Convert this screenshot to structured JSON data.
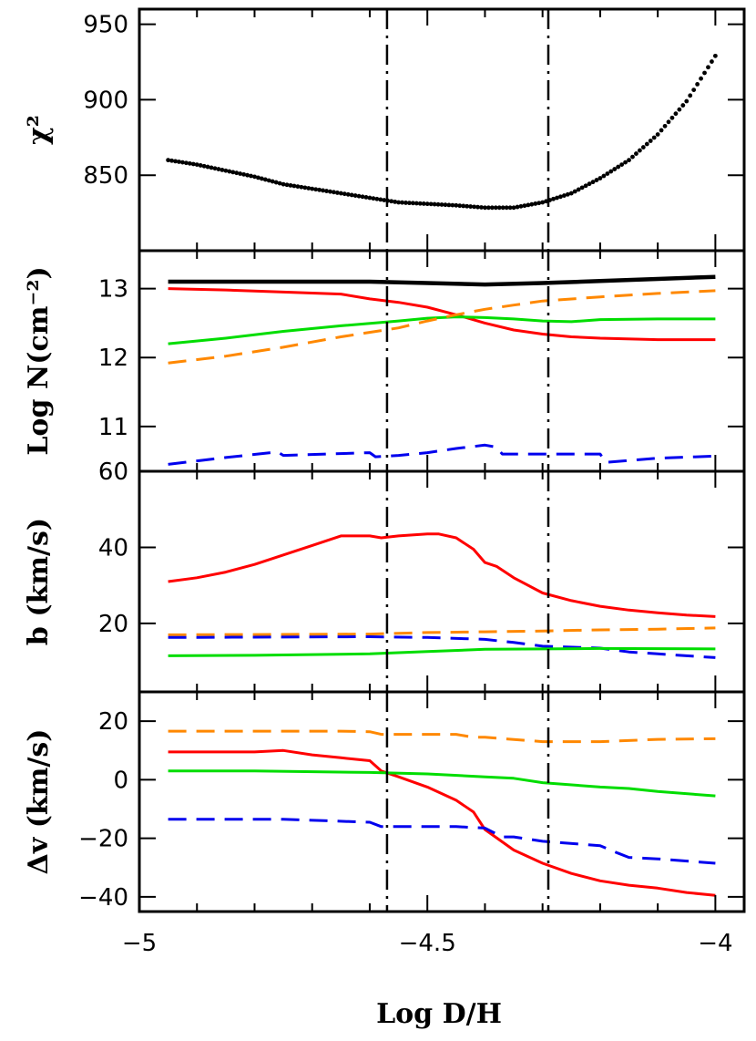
{
  "chart_data": {
    "type": "line",
    "xlabel": "Log D/H",
    "xlim": [
      -5,
      -3.95
    ],
    "xticks": [
      -5,
      -4.5,
      -4
    ],
    "xtick_labels": [
      "−5",
      "−4.5",
      "−4"
    ],
    "vlines": [
      -4.57,
      -4.29
    ],
    "colors": {
      "total": "#000000",
      "red": "#ff0000",
      "green": "#00dd00",
      "orange": "#ff8800",
      "blue": "#0000ee"
    },
    "panels": [
      {
        "id": "chi2",
        "ylabel": "χ²",
        "ylim": [
          800,
          960
        ],
        "yticks": [
          850,
          900,
          950
        ],
        "ytick_labels": [
          "850",
          "900",
          "950"
        ],
        "series": [
          {
            "key": "total",
            "style": "dots",
            "x": [
              -4.95,
              -4.9,
              -4.85,
              -4.8,
              -4.75,
              -4.7,
              -4.65,
              -4.6,
              -4.55,
              -4.5,
              -4.45,
              -4.4,
              -4.35,
              -4.3,
              -4.25,
              -4.2,
              -4.15,
              -4.1,
              -4.05,
              -4.0
            ],
            "y": [
              860,
              857,
              853,
              849,
              844,
              841,
              838,
              835,
              832,
              831,
              830,
              828.5,
              828.5,
              832,
              838,
              848,
              860,
              877,
              899,
              929
            ]
          }
        ]
      },
      {
        "id": "logN",
        "ylabel": "Log N(cm⁻²)",
        "ylim": [
          10.35,
          13.55
        ],
        "yticks": [
          11,
          12,
          13
        ],
        "ytick_labels": [
          "11",
          "12",
          "13"
        ],
        "series": [
          {
            "key": "total",
            "style": "thick",
            "x": [
              -4.95,
              -4.6,
              -4.5,
              -4.4,
              -4.3,
              -4.2,
              -4.1,
              -4.0
            ],
            "y": [
              13.1,
              13.1,
              13.08,
              13.06,
              13.08,
              13.11,
              13.14,
              13.17
            ]
          },
          {
            "key": "red",
            "style": "solid",
            "x": [
              -4.95,
              -4.85,
              -4.75,
              -4.65,
              -4.6,
              -4.55,
              -4.5,
              -4.45,
              -4.4,
              -4.35,
              -4.3,
              -4.25,
              -4.2,
              -4.1,
              -4.0
            ],
            "y": [
              13.0,
              12.98,
              12.95,
              12.92,
              12.85,
              12.8,
              12.73,
              12.62,
              12.5,
              12.4,
              12.34,
              12.3,
              12.28,
              12.26,
              12.26
            ]
          },
          {
            "key": "green",
            "style": "solid",
            "x": [
              -4.95,
              -4.85,
              -4.75,
              -4.65,
              -4.55,
              -4.5,
              -4.45,
              -4.4,
              -4.35,
              -4.3,
              -4.25,
              -4.2,
              -4.1,
              -4.0
            ],
            "y": [
              12.2,
              12.28,
              12.38,
              12.46,
              12.53,
              12.57,
              12.59,
              12.58,
              12.56,
              12.53,
              12.52,
              12.55,
              12.56,
              12.56
            ]
          },
          {
            "key": "orange",
            "style": "dashed",
            "x": [
              -4.95,
              -4.85,
              -4.75,
              -4.65,
              -4.55,
              -4.5,
              -4.45,
              -4.4,
              -4.35,
              -4.3,
              -4.2,
              -4.1,
              -4.0
            ],
            "y": [
              11.92,
              12.02,
              12.15,
              12.3,
              12.43,
              12.53,
              12.62,
              12.7,
              12.76,
              12.82,
              12.88,
              12.93,
              12.97
            ]
          },
          {
            "key": "blue",
            "style": "dashed",
            "x": [
              -4.95,
              -4.85,
              -4.76,
              -4.75,
              -4.6,
              -4.59,
              -4.55,
              -4.5,
              -4.45,
              -4.4,
              -4.38,
              -4.37,
              -4.3,
              -4.2,
              -4.19,
              -4.1,
              -4.0
            ],
            "y": [
              10.45,
              10.55,
              10.63,
              10.58,
              10.62,
              10.56,
              10.58,
              10.62,
              10.68,
              10.73,
              10.7,
              10.6,
              10.6,
              10.6,
              10.48,
              10.54,
              10.57
            ]
          }
        ]
      },
      {
        "id": "b",
        "ylabel": "b (km/s)",
        "ylim": [
          2,
          60
        ],
        "yticks": [
          20,
          40,
          60
        ],
        "ytick_labels": [
          "20",
          "40",
          "60"
        ],
        "series": [
          {
            "key": "red",
            "style": "solid",
            "x": [
              -4.95,
              -4.9,
              -4.85,
              -4.8,
              -4.75,
              -4.7,
              -4.65,
              -4.6,
              -4.58,
              -4.55,
              -4.5,
              -4.48,
              -4.45,
              -4.42,
              -4.4,
              -4.38,
              -4.35,
              -4.3,
              -4.25,
              -4.2,
              -4.15,
              -4.1,
              -4.05,
              -4.0
            ],
            "y": [
              31,
              32,
              33.5,
              35.5,
              38,
              40.5,
              43,
              43,
              42.5,
              43,
              43.5,
              43.5,
              42.5,
              39.5,
              36,
              35,
              32,
              28,
              26,
              24.5,
              23.5,
              22.8,
              22.2,
              21.8
            ]
          },
          {
            "key": "orange",
            "style": "dashed",
            "x": [
              -4.95,
              -4.6,
              -4.5,
              -4.4,
              -4.3,
              -4.2,
              -4.1,
              -4.0
            ],
            "y": [
              17,
              17.2,
              17.6,
              17.8,
              18,
              18.3,
              18.5,
              18.8
            ]
          },
          {
            "key": "blue",
            "style": "dashed",
            "x": [
              -4.95,
              -4.6,
              -4.5,
              -4.4,
              -4.35,
              -4.3,
              -4.2,
              -4.15,
              -4.1,
              -4.0
            ],
            "y": [
              16.3,
              16.5,
              16.3,
              15.8,
              15,
              14,
              13.5,
              12.5,
              12,
              11
            ]
          },
          {
            "key": "green",
            "style": "solid",
            "x": [
              -4.95,
              -4.8,
              -4.6,
              -4.5,
              -4.4,
              -4.3,
              -4.2,
              -4.0
            ],
            "y": [
              11.5,
              11.6,
              12,
              12.6,
              13.2,
              13.3,
              13.4,
              13.3
            ]
          }
        ]
      },
      {
        "id": "dv",
        "ylabel": "Δv (km/s)",
        "ylim": [
          -45,
          30
        ],
        "yticks": [
          -40,
          -20,
          0,
          20
        ],
        "ytick_labels": [
          "−40",
          "−20",
          "0",
          "20"
        ],
        "series": [
          {
            "key": "orange",
            "style": "dashed",
            "x": [
              -4.95,
              -4.8,
              -4.65,
              -4.6,
              -4.58,
              -4.55,
              -4.5,
              -4.45,
              -4.42,
              -4.4,
              -4.3,
              -4.2,
              -4.1,
              -4.0
            ],
            "y": [
              16.6,
              16.6,
              16.6,
              16.4,
              15.5,
              15.5,
              15.5,
              15.5,
              14.5,
              14.5,
              13,
              13,
              13.8,
              14
            ]
          },
          {
            "key": "red",
            "style": "solid",
            "x": [
              -4.95,
              -4.8,
              -4.75,
              -4.7,
              -4.65,
              -4.6,
              -4.58,
              -4.55,
              -4.5,
              -4.45,
              -4.42,
              -4.4,
              -4.35,
              -4.3,
              -4.25,
              -4.2,
              -4.15,
              -4.1,
              -4.05,
              -4.0
            ],
            "y": [
              9.5,
              9.5,
              10,
              8.5,
              7.5,
              6.5,
              3,
              1,
              -2.5,
              -7,
              -11,
              -17,
              -24,
              -28.5,
              -32,
              -34.5,
              -36,
              -37,
              -38.5,
              -39.5
            ]
          },
          {
            "key": "green",
            "style": "solid",
            "x": [
              -4.95,
              -4.8,
              -4.6,
              -4.5,
              -4.4,
              -4.35,
              -4.3,
              -4.2,
              -4.15,
              -4.1,
              -4.0
            ],
            "y": [
              3,
              3,
              2.5,
              2,
              1,
              0.5,
              -1,
              -2.5,
              -3,
              -4,
              -5.5
            ]
          },
          {
            "key": "blue",
            "style": "dashed",
            "x": [
              -4.95,
              -4.75,
              -4.6,
              -4.58,
              -4.55,
              -4.5,
              -4.45,
              -4.4,
              -4.37,
              -4.35,
              -4.3,
              -4.2,
              -4.17,
              -4.15,
              -4.1,
              -4.0
            ],
            "y": [
              -13.5,
              -13.5,
              -14.5,
              -16,
              -16,
              -16,
              -16,
              -16.5,
              -19.5,
              -19.5,
              -21,
              -22.5,
              -25,
              -26.5,
              -27,
              -28.5
            ]
          }
        ]
      }
    ]
  }
}
